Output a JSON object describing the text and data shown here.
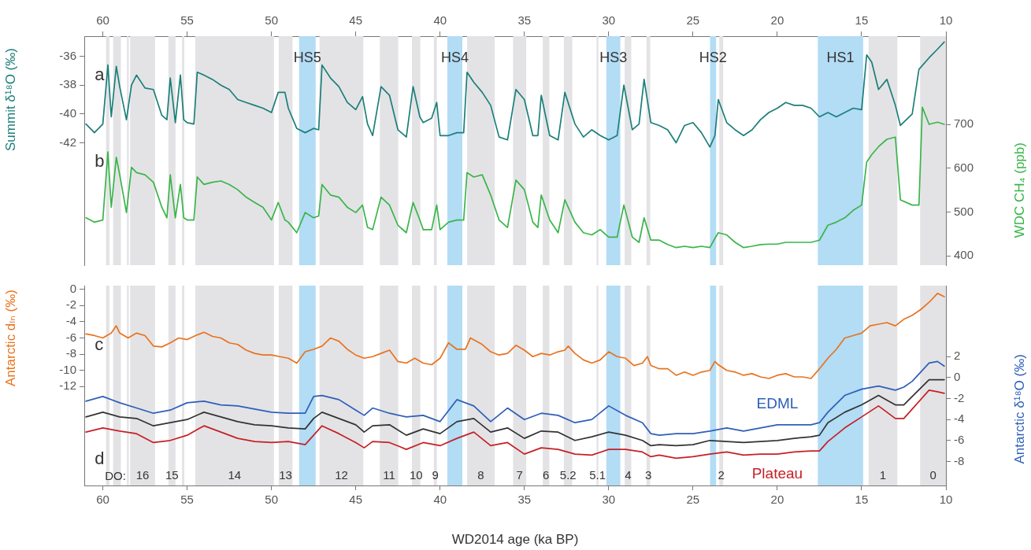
{
  "chart_data": [
    {
      "type": "line",
      "ylabel": "Summit δ¹⁸O (‰)",
      "y2label": "WDC CH₄ (ppb)",
      "tick_labels": "y",
      "xlim": [
        61.1,
        10
      ],
      "xticks": [
        60,
        55,
        50,
        45,
        40,
        35,
        30,
        25,
        20,
        15,
        10
      ],
      "x2lim": [
        61.1,
        10
      ],
      "x2ticks": [
        60,
        55,
        50,
        45,
        40,
        35,
        30,
        25,
        20,
        15,
        10
      ],
      "ylim": [
        -50.5,
        -34.6
      ],
      "yticks": [
        -36,
        -38,
        -40,
        -42
      ],
      "y2lim": [
        379,
        901
      ],
      "y2ticks": [
        400,
        500,
        600,
        700
      ],
      "series": [
        {
          "color": "#1b7f7a",
          "x": [
            61,
            60.5,
            60,
            59.7,
            59.5,
            59.2,
            59,
            58.6,
            58.3,
            58,
            57.5,
            57,
            56.5,
            56.2,
            56,
            55.7,
            55.4,
            55.2,
            55,
            54.6,
            54.4,
            54,
            53.5,
            53,
            52.5,
            52,
            51.5,
            51,
            50.5,
            50,
            49.6,
            49.2,
            49,
            48.5,
            48,
            47.5,
            47.2,
            47,
            46.5,
            46,
            45.5,
            45,
            44.6,
            44.3,
            44,
            43.5,
            43,
            42.5,
            42,
            41.6,
            41.2,
            41,
            40.5,
            40.2,
            40,
            39.5,
            39,
            38.6,
            38.4,
            38,
            37.5,
            37,
            36.5,
            36,
            35.5,
            35,
            34.5,
            34.2,
            34,
            33.5,
            33,
            32.6,
            32,
            31.5,
            31,
            30.5,
            30,
            29.5,
            29.1,
            28.6,
            28.2,
            27.9,
            27.5,
            27,
            26.5,
            26,
            25.5,
            25,
            24.5,
            24,
            23.7,
            23.5,
            23,
            22.5,
            22,
            21.5,
            21,
            20.5,
            20,
            19.5,
            19,
            18.5,
            18,
            17.5,
            17,
            16.5,
            16,
            15.5,
            15,
            14.7,
            14.4,
            14,
            13.5,
            13,
            12.7,
            12,
            11.6,
            11,
            10.5,
            10.1
          ],
          "values": [
            -40.7,
            -41.3,
            -40.7,
            -36.6,
            -40.2,
            -36.7,
            -38.1,
            -40.4,
            -38,
            -37.3,
            -38.2,
            -38.3,
            -40.1,
            -40.4,
            -37.5,
            -40.6,
            -37.3,
            -40.4,
            -40.6,
            -40.7,
            -37.1,
            -37.3,
            -37.6,
            -38,
            -38.3,
            -39,
            -39.2,
            -39.4,
            -39.6,
            -39.9,
            -38.5,
            -38.5,
            -39.6,
            -41,
            -41.3,
            -41,
            -41.1,
            -36.6,
            -37.5,
            -38.1,
            -39.2,
            -39.7,
            -38.8,
            -40.7,
            -41.5,
            -38.1,
            -38.7,
            -41.1,
            -41.6,
            -38.1,
            -40.2,
            -40.6,
            -40.3,
            -39.2,
            -41.5,
            -41.5,
            -41.3,
            -41.3,
            -37.1,
            -37.8,
            -38.5,
            -39.4,
            -41.6,
            -41.8,
            -38.3,
            -39,
            -41.5,
            -41.5,
            -38.7,
            -41.5,
            -41.8,
            -38.5,
            -40.7,
            -41.6,
            -41.1,
            -41.5,
            -41.8,
            -41.5,
            -38,
            -41.1,
            -40.7,
            -37.6,
            -40.6,
            -40.8,
            -41.1,
            -42,
            -40.8,
            -40.6,
            -41.3,
            -42.3,
            -41.5,
            -39,
            -40.6,
            -41.1,
            -41.5,
            -41.1,
            -40.4,
            -39.9,
            -39.6,
            -39.2,
            -39.4,
            -39.4,
            -39.6,
            -40.2,
            -39.9,
            -40.2,
            -39.9,
            -39.6,
            -39.7,
            -35.9,
            -36.4,
            -38.3,
            -37.6,
            -39.4,
            -40.8,
            -40,
            -36.9,
            -36.1,
            -35.5,
            -35
          ]
        },
        {
          "color": "#3ab54a",
          "axis": "y2",
          "x": [
            61,
            60.5,
            60,
            59.7,
            59.5,
            59.2,
            59,
            58.6,
            58.3,
            58,
            57.5,
            57,
            56.5,
            56.2,
            56,
            55.7,
            55.4,
            55.2,
            55,
            54.6,
            54.4,
            54,
            53.5,
            53,
            52.5,
            52,
            51.5,
            51,
            50.5,
            50,
            49.6,
            49.2,
            49,
            48.5,
            48,
            47.5,
            47.2,
            47,
            46.5,
            46,
            45.5,
            45,
            44.6,
            44.3,
            44,
            43.5,
            43,
            42.5,
            42,
            41.6,
            41.2,
            41,
            40.5,
            40.2,
            40,
            39.5,
            39,
            38.6,
            38.4,
            38,
            37.5,
            37,
            36.5,
            36,
            35.5,
            35,
            34.5,
            34.2,
            34,
            33.5,
            33,
            32.6,
            32,
            31.5,
            31,
            30.5,
            30,
            29.5,
            29.1,
            28.6,
            28.2,
            27.9,
            27.5,
            27,
            26.5,
            26,
            25.5,
            25,
            24.5,
            24,
            23.7,
            23.5,
            23,
            22.5,
            22,
            21.5,
            21,
            20.5,
            20,
            19.5,
            19,
            18.5,
            18,
            17.5,
            17,
            16.5,
            16,
            15.5,
            15,
            14.7,
            14.4,
            14,
            13.5,
            13,
            12.7,
            12,
            11.6,
            11.4,
            11,
            10.5,
            10.1
          ],
          "values": [
            487,
            477,
            482,
            637,
            511,
            625,
            585,
            499,
            602,
            590,
            585,
            568,
            511,
            487,
            585,
            487,
            563,
            487,
            482,
            482,
            580,
            563,
            568,
            571,
            563,
            551,
            534,
            522,
            511,
            482,
            522,
            482,
            477,
            453,
            499,
            487,
            491,
            563,
            539,
            534,
            511,
            499,
            516,
            465,
            460,
            534,
            516,
            470,
            453,
            522,
            482,
            460,
            460,
            516,
            460,
            477,
            482,
            482,
            590,
            580,
            585,
            539,
            482,
            465,
            573,
            551,
            477,
            465,
            539,
            482,
            453,
            528,
            477,
            453,
            448,
            460,
            443,
            443,
            516,
            443,
            431,
            487,
            436,
            436,
            426,
            419,
            422,
            419,
            422,
            419,
            440,
            453,
            448,
            431,
            419,
            422,
            426,
            427,
            427,
            431,
            431,
            431,
            431,
            436,
            470,
            477,
            487,
            504,
            516,
            614,
            631,
            649,
            666,
            671,
            528,
            516,
            516,
            739,
            700,
            705,
            700
          ]
        }
      ],
      "bands": [
        {
          "axis": "x",
          "from": 59.81,
          "to": 59.61,
          "color": "#e3e3e6"
        },
        {
          "axis": "x",
          "from": 59.39,
          "to": 58.93,
          "color": "#e3e3e6"
        },
        {
          "axis": "x",
          "from": 58.57,
          "to": 58.46,
          "color": "#e3e3e6"
        },
        {
          "axis": "x",
          "from": 58.38,
          "to": 56.9,
          "color": "#e3e3e6"
        },
        {
          "axis": "x",
          "from": 56.11,
          "to": 55.69,
          "color": "#e3e3e6"
        },
        {
          "axis": "x",
          "from": 55.3,
          "to": 55.17,
          "color": "#e3e3e6"
        },
        {
          "axis": "x",
          "from": 54.52,
          "to": 49.85,
          "color": "#e3e3e6"
        },
        {
          "axis": "x",
          "from": 49.57,
          "to": 48.75,
          "color": "#e3e3e6"
        },
        {
          "axis": "x",
          "from": 48.36,
          "to": 47.38,
          "color": "#b3dcf5",
          "label": "HS5"
        },
        {
          "axis": "x",
          "from": 47.15,
          "to": 44.55,
          "color": "#e3e3e6"
        },
        {
          "axis": "x",
          "from": 43.57,
          "to": 42.48,
          "color": "#e3e3e6"
        },
        {
          "axis": "x",
          "from": 41.67,
          "to": 41.17,
          "color": "#e3e3e6"
        },
        {
          "axis": "x",
          "from": 40.37,
          "to": 40.19,
          "color": "#e3e3e6"
        },
        {
          "axis": "x",
          "from": 39.57,
          "to": 38.68,
          "color": "#b3dcf5",
          "label": "HS4"
        },
        {
          "axis": "x",
          "from": 38.4,
          "to": 36.76,
          "color": "#e3e3e6"
        },
        {
          "axis": "x",
          "from": 35.67,
          "to": 34.89,
          "color": "#e3e3e6"
        },
        {
          "axis": "x",
          "from": 33.91,
          "to": 33.52,
          "color": "#e3e3e6"
        },
        {
          "axis": "x",
          "from": 32.66,
          "to": 32.16,
          "color": "#e3e3e6"
        },
        {
          "axis": "x",
          "from": 30.72,
          "to": 30.61,
          "color": "#e3e3e6"
        },
        {
          "axis": "x",
          "from": 30.14,
          "to": 29.31,
          "color": "#b3dcf5",
          "label": "HS3"
        },
        {
          "axis": "x",
          "from": 29.05,
          "to": 28.66,
          "color": "#e3e3e6"
        },
        {
          "axis": "x",
          "from": 27.76,
          "to": 27.54,
          "color": "#e3e3e6"
        },
        {
          "axis": "x",
          "from": 23.99,
          "to": 23.63,
          "color": "#b3dcf5",
          "label": "HS2"
        },
        {
          "axis": "x",
          "from": 23.44,
          "to": 23.21,
          "color": "#e3e3e6"
        },
        {
          "axis": "x",
          "from": 17.6,
          "to": 14.91,
          "color": "#b3dcf5",
          "label": "HS1"
        },
        {
          "axis": "x",
          "from": 14.59,
          "to": 12.88,
          "color": "#e3e3e6"
        },
        {
          "axis": "x",
          "from": 11.53,
          "to": 10,
          "color": "#e3e3e6"
        }
      ],
      "annotations": [
        "a",
        "b"
      ]
    },
    {
      "type": "line",
      "xlabel": "WD2014 age (ka BP)",
      "ylabel": "Antarctic dₗₙ (‰)",
      "y2label": "Antarctic δ¹⁸O (‰)",
      "xlim": [
        61.1,
        10
      ],
      "xticks": [
        60,
        55,
        50,
        45,
        40,
        35,
        30,
        25,
        20,
        15,
        10
      ],
      "ylim": [
        -24.2,
        0.46
      ],
      "yticks": [
        0,
        -2,
        -4,
        -6,
        -8,
        -10,
        -12
      ],
      "y2lim": [
        -10.3,
        8.79
      ],
      "y2ticks": [
        2,
        0,
        -2,
        -4,
        -6,
        -8
      ],
      "series": [
        {
          "color": "#e8731e",
          "x": [
            61,
            60.5,
            60,
            59.5,
            59.2,
            59,
            58.5,
            58,
            57.5,
            57,
            56.5,
            56,
            55.5,
            55,
            54.5,
            54,
            53.5,
            53,
            52.5,
            52,
            51.5,
            51,
            50.5,
            50,
            49.5,
            49,
            48.5,
            48,
            47.5,
            47,
            46.5,
            46,
            45.5,
            45,
            44.5,
            44,
            43.5,
            43,
            42.5,
            42,
            41.5,
            41,
            40.5,
            40,
            39.5,
            39,
            38.5,
            38.2,
            37.5,
            37,
            36.5,
            36,
            35.5,
            35,
            34.5,
            34,
            33.5,
            33,
            32.6,
            32.4,
            32,
            31.5,
            31,
            30.5,
            30,
            29.5,
            29,
            28.5,
            28,
            27.7,
            27.5,
            27,
            26.5,
            26,
            25.5,
            25,
            24.5,
            24,
            23.7,
            23.5,
            23,
            22.5,
            22,
            21.5,
            21,
            20.5,
            20,
            19.5,
            19,
            18.5,
            18,
            17.5,
            17,
            16.5,
            16,
            15.5,
            15,
            14.5,
            14,
            13.5,
            13,
            12.5,
            12,
            11.5,
            11,
            10.5,
            10.1
          ],
          "values": [
            -5.5,
            -5.7,
            -6,
            -5.4,
            -4.5,
            -5.4,
            -6,
            -5.4,
            -5.7,
            -7,
            -7.1,
            -6.6,
            -6,
            -6.2,
            -5.7,
            -5.3,
            -5.8,
            -6,
            -6.6,
            -6.8,
            -7.5,
            -7.9,
            -8.1,
            -8.1,
            -8.3,
            -8.5,
            -9.1,
            -7.7,
            -7.4,
            -7,
            -6,
            -6.4,
            -7.4,
            -8.1,
            -8.5,
            -8.3,
            -7.9,
            -7.5,
            -8.9,
            -9.1,
            -8.5,
            -9.1,
            -9.3,
            -8.5,
            -6.6,
            -7.4,
            -7.4,
            -6,
            -6.8,
            -7.7,
            -8.1,
            -7.9,
            -6.9,
            -7.5,
            -8.3,
            -7.9,
            -8.1,
            -7.7,
            -7.5,
            -7,
            -7.9,
            -8.7,
            -9.1,
            -8.7,
            -7.7,
            -8.3,
            -8.5,
            -9.4,
            -9.1,
            -8.3,
            -9.4,
            -9.8,
            -9.8,
            -10.6,
            -10.2,
            -10.6,
            -10.2,
            -10,
            -8.9,
            -9.3,
            -10,
            -10.2,
            -10.6,
            -10.4,
            -10.8,
            -11,
            -10.6,
            -10.4,
            -10.8,
            -10.8,
            -11,
            -9.8,
            -8.5,
            -7.4,
            -6,
            -5.7,
            -5.4,
            -4.5,
            -4.3,
            -4.1,
            -4.5,
            -3.7,
            -3.2,
            -2.5,
            -1.6,
            -0.5,
            -0.9
          ]
        },
        {
          "name": "EDML",
          "color": "#2e5fb8",
          "axis": "y2",
          "x": [
            61,
            60,
            59,
            58,
            57,
            56,
            55,
            54,
            53,
            52,
            51,
            50,
            49,
            48,
            47.5,
            47,
            46,
            45,
            44.5,
            44,
            43,
            42,
            41,
            40,
            39,
            38,
            37,
            36,
            35,
            34,
            33,
            32,
            31,
            30,
            29,
            28,
            27.5,
            27,
            26,
            25,
            24,
            23,
            22,
            21,
            20,
            19,
            18,
            17.5,
            17,
            16,
            15,
            14,
            13,
            12.5,
            12,
            11,
            10.5,
            10.1
          ],
          "values": [
            -2.25,
            -1.8,
            -2.4,
            -2.9,
            -3.4,
            -3.1,
            -2.4,
            -2.25,
            -2.6,
            -2.7,
            -3,
            -3.3,
            -3.4,
            -3.4,
            -1.8,
            -1.7,
            -2.1,
            -3.1,
            -3.6,
            -2.9,
            -3.4,
            -3.75,
            -3.6,
            -4.2,
            -2.1,
            -2.7,
            -4.2,
            -2.9,
            -4,
            -3.4,
            -3.6,
            -4.3,
            -4,
            -2.7,
            -3.6,
            -4.3,
            -5.35,
            -5.5,
            -5.35,
            -5.35,
            -5.1,
            -4.8,
            -5.1,
            -4.8,
            -4.5,
            -4.5,
            -4.5,
            -4.3,
            -3.3,
            -1.7,
            -1.1,
            -0.8,
            -1.2,
            -0.9,
            -0.35,
            1.4,
            1.55,
            1.1
          ]
        },
        {
          "color": "#333333",
          "axis": "y2",
          "x": [
            61,
            60,
            59,
            58,
            57,
            56,
            55,
            54,
            53,
            52,
            51,
            50,
            49,
            48,
            47.5,
            47,
            46,
            45,
            44.5,
            44,
            43,
            42,
            41,
            40,
            39,
            38,
            37,
            36,
            35,
            34,
            33,
            32,
            31,
            30,
            29,
            28,
            27.5,
            27,
            26,
            25,
            24,
            23,
            22,
            21,
            20,
            19,
            18,
            17.5,
            17,
            16,
            15,
            14,
            13,
            12.5,
            12,
            11,
            10.5,
            10.1
          ],
          "values": [
            -3.75,
            -3.3,
            -3.75,
            -3.9,
            -4.6,
            -4.3,
            -4,
            -3.3,
            -3.75,
            -4.2,
            -4.5,
            -4.6,
            -4.8,
            -4.9,
            -3.9,
            -3.3,
            -3.9,
            -4.5,
            -5.2,
            -4.6,
            -4.5,
            -5.5,
            -4.9,
            -5.35,
            -4.2,
            -3.9,
            -5.2,
            -4.8,
            -5.8,
            -5.1,
            -5.2,
            -6,
            -5.65,
            -5.2,
            -5.5,
            -6,
            -6.5,
            -6.4,
            -6.5,
            -6.4,
            -6,
            -6.1,
            -6.2,
            -6.1,
            -6,
            -5.8,
            -5.65,
            -5.5,
            -4.3,
            -3.3,
            -2.6,
            -1.7,
            -2.6,
            -2.6,
            -1.8,
            -0.2,
            -0.2,
            -0.2
          ]
        },
        {
          "name": "Plateau",
          "color": "#c62026",
          "axis": "y2",
          "x": [
            61,
            60,
            59,
            58,
            57,
            56,
            55,
            54,
            53,
            52,
            51,
            50,
            49,
            48,
            47.5,
            47,
            46,
            45,
            44.5,
            44,
            43,
            42,
            41,
            40,
            39,
            38,
            37,
            36,
            35,
            34,
            33,
            32,
            31,
            30,
            29,
            28,
            27.5,
            27,
            26,
            25,
            24,
            23,
            22,
            21,
            20,
            19,
            18,
            17.5,
            17,
            16,
            15,
            14,
            13,
            12.5,
            12,
            11,
            10.5,
            10.1
          ],
          "values": [
            -5.2,
            -4.8,
            -5.1,
            -5.35,
            -6.2,
            -6,
            -5.5,
            -4.6,
            -5.2,
            -5.8,
            -6.1,
            -6.2,
            -6.1,
            -6.4,
            -5.5,
            -4.6,
            -5.35,
            -6.2,
            -6.7,
            -6.1,
            -6.2,
            -6.85,
            -6.2,
            -6.5,
            -5.8,
            -5.2,
            -6.5,
            -6.2,
            -7.3,
            -6.7,
            -6.85,
            -7.3,
            -7.4,
            -6.85,
            -6.85,
            -7.1,
            -7.55,
            -7.4,
            -7.7,
            -7.55,
            -7.3,
            -7.1,
            -7.4,
            -7.3,
            -7.3,
            -7.1,
            -7,
            -7,
            -6.1,
            -4.8,
            -3.75,
            -2.7,
            -3.9,
            -3.9,
            -3,
            -1.2,
            -1.35,
            -1.5
          ]
        }
      ],
      "bands": [
        {
          "axis": "x",
          "from": 59.81,
          "to": 59.61,
          "color": "#e3e3e6"
        },
        {
          "axis": "x",
          "from": 59.39,
          "to": 58.93,
          "color": "#e3e3e6"
        },
        {
          "axis": "x",
          "from": 58.57,
          "to": 58.46,
          "color": "#e3e3e6"
        },
        {
          "axis": "x",
          "from": 58.38,
          "to": 56.9,
          "label": "16",
          "color": "#e3e3e6"
        },
        {
          "axis": "x",
          "from": 56.11,
          "to": 55.69,
          "label": "15",
          "color": "#e3e3e6"
        },
        {
          "axis": "x",
          "from": 55.3,
          "to": 55.17,
          "color": "#e3e3e6"
        },
        {
          "axis": "x",
          "from": 54.52,
          "to": 49.85,
          "label": "14",
          "color": "#e3e3e6"
        },
        {
          "axis": "x",
          "from": 49.57,
          "to": 48.75,
          "label": "13",
          "color": "#e3e3e6"
        },
        {
          "axis": "x",
          "from": 48.36,
          "to": 47.38,
          "color": "#b3dcf5"
        },
        {
          "axis": "x",
          "from": 47.15,
          "to": 44.55,
          "label": "12",
          "color": "#e3e3e6"
        },
        {
          "axis": "x",
          "from": 43.57,
          "to": 42.48,
          "label": "11",
          "color": "#e3e3e6"
        },
        {
          "axis": "x",
          "from": 41.67,
          "to": 41.17,
          "label": "10",
          "color": "#e3e3e6"
        },
        {
          "axis": "x",
          "from": 40.37,
          "to": 40.19,
          "label": "9",
          "color": "#e3e3e6"
        },
        {
          "axis": "x",
          "from": 39.57,
          "to": 38.68,
          "color": "#b3dcf5"
        },
        {
          "axis": "x",
          "from": 38.4,
          "to": 36.76,
          "label": "8",
          "color": "#e3e3e6"
        },
        {
          "axis": "x",
          "from": 35.67,
          "to": 34.89,
          "label": "7",
          "color": "#e3e3e6"
        },
        {
          "axis": "x",
          "from": 33.91,
          "to": 33.52,
          "label": "6",
          "color": "#e3e3e6"
        },
        {
          "axis": "x",
          "from": 32.66,
          "to": 32.16,
          "label": "5.2",
          "color": "#e3e3e6"
        },
        {
          "axis": "x",
          "from": 30.72,
          "to": 30.61,
          "label": "5.1",
          "color": "#e3e3e6"
        },
        {
          "axis": "x",
          "from": 30.14,
          "to": 29.31,
          "color": "#b3dcf5"
        },
        {
          "axis": "x",
          "from": 29.05,
          "to": 28.66,
          "label": "4",
          "color": "#e3e3e6"
        },
        {
          "axis": "x",
          "from": 27.76,
          "to": 27.54,
          "label": "3",
          "color": "#e3e3e6"
        },
        {
          "axis": "x",
          "from": 23.99,
          "to": 23.63,
          "color": "#b3dcf5"
        },
        {
          "axis": "x",
          "from": 23.44,
          "to": 23.21,
          "label": "2",
          "color": "#e3e3e6"
        },
        {
          "axis": "x",
          "from": 17.6,
          "to": 14.91,
          "color": "#b3dcf5"
        },
        {
          "axis": "x",
          "from": 14.59,
          "to": 12.88,
          "label": "1",
          "color": "#e3e3e6"
        },
        {
          "axis": "x",
          "from": 11.53,
          "to": 10,
          "label": "0",
          "color": "#e3e3e6"
        }
      ],
      "annotations": [
        "c",
        "d",
        "DO:"
      ]
    }
  ]
}
